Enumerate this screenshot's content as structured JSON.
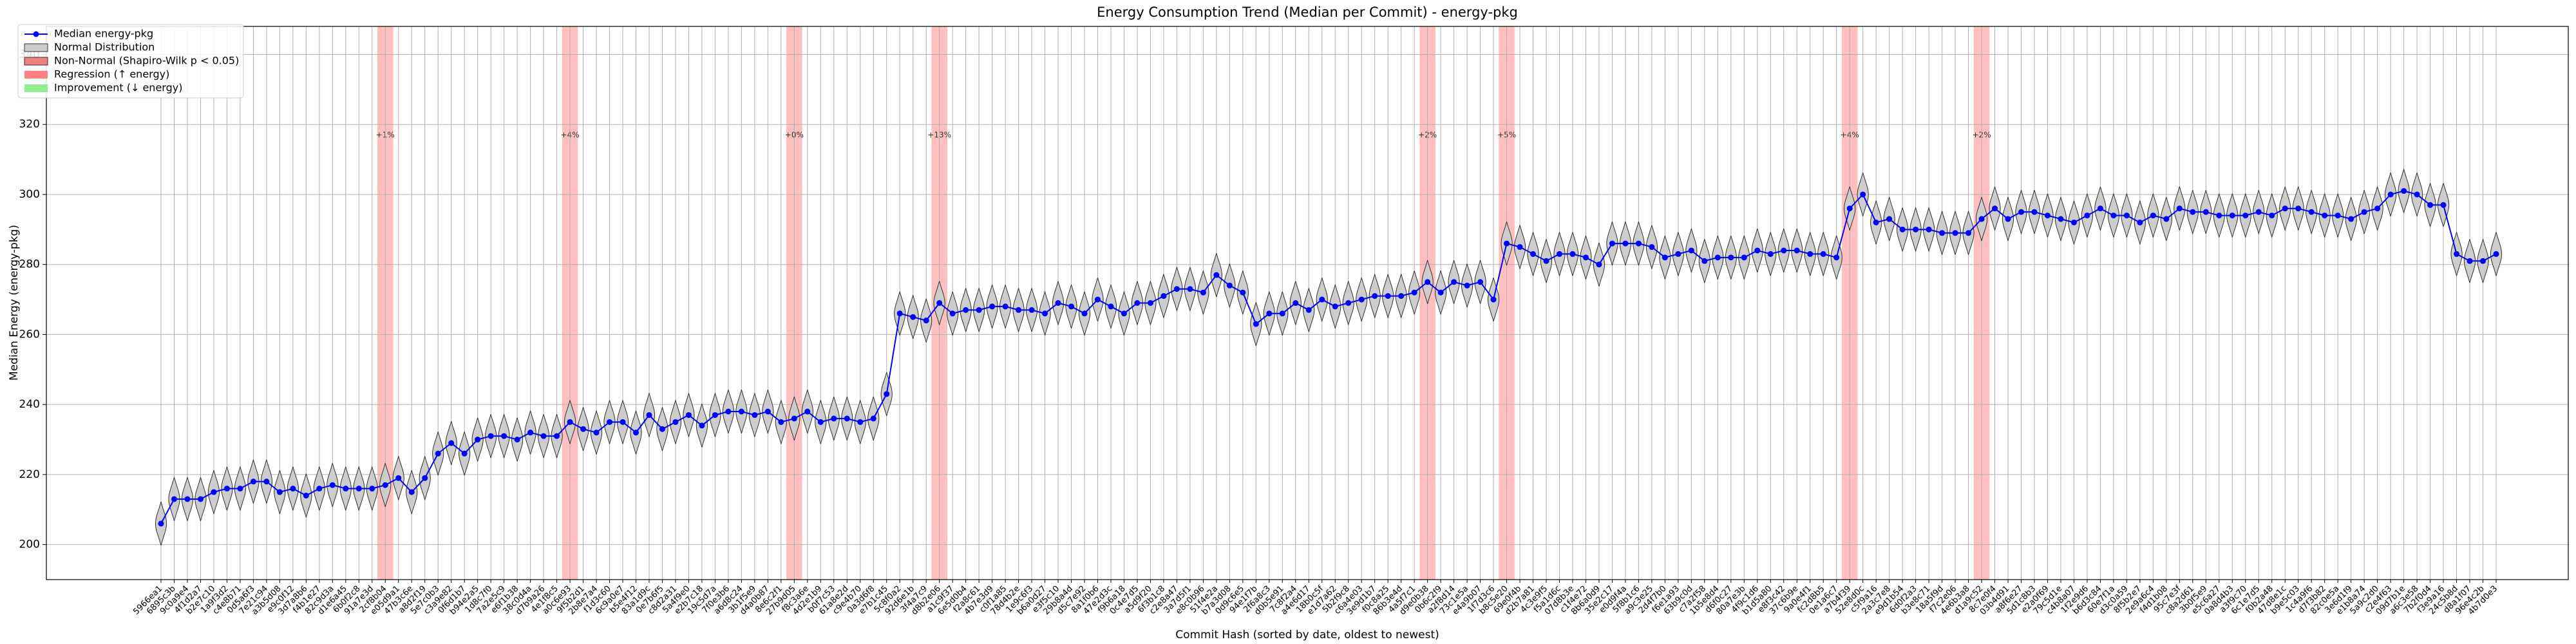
{
  "chart_data": {
    "type": "violin-line",
    "title": "Energy Consumption Trend (Median per Commit) - energy-pkg",
    "xlabel": "Commit Hash (sorted by date, oldest to newest)",
    "ylabel": "Median Energy (energy-pkg)",
    "ylim": [
      190,
      348
    ],
    "yticks": [
      200,
      220,
      240,
      260,
      280,
      300,
      320,
      340
    ],
    "grid": true,
    "legend": "upper left",
    "categories": [
      "5966ea1",
      "6895c3b",
      "9c0a9e4",
      "4f1d2a7",
      "b2e7c10",
      "1a9f3d2",
      "c4e8b71",
      "0d5a6f3",
      "7e21c94",
      "a3b5d08",
      "e9c0f12",
      "3d7a8b6",
      "f4b1e27",
      "82c9d3a",
      "d1e6a45",
      "6b0f2c8",
      "91a7e3d",
      "2cf8b04",
      "e05d9a1",
      "47b3c6e",
      "a8d2f19",
      "5e7c0b3",
      "c3a9e82",
      "0f6d1b7",
      "b94e2a5",
      "1d8c7f0",
      "7a2e5c9",
      "e6f1b38",
      "38c0d4a",
      "d7b9a26",
      "4e1f8c5",
      "a0c6e93",
      "9f5b2d1",
      "2b8e7a4",
      "f1d3c60",
      "6c9a0e7",
      "b5e4f12",
      "83a1d9c",
      "0e7b6f5",
      "c8d2a31",
      "5a4f9e0",
      "e2b7c18",
      "19c5d7a",
      "7f0e3b6",
      "a6d8c24",
      "3b1f5e9",
      "d4a0b87",
      "8e6c2f1",
      "27b9d05",
      "f8c3a6e",
      "4d2e1b9",
      "b0f7c53",
      "61a8e2d",
      "c9e4b70",
      "0a3d6f8",
      "e7b1c45",
      "5c8f0a2",
      "92d6e1b",
      "3f4a7c9",
      "d8b2e06",
      "a1c9f37",
      "6e5d0b4",
      "f2a8c61",
      "4b7e3d9",
      "c0f1a85",
      "78d4b2e",
      "1e9c6f3",
      "b6a0d27",
      "e3f5c10",
      "29b8a4d",
      "d5c7e92",
      "8a1f0b6",
      "47e2d3c",
      "f9b6a18",
      "0c4e7d5",
      "a5d9f20",
      "6f3b1c8",
      "c2e8a47",
      "3a7d5f1",
      "e8c0b96",
      "51f4e2a",
      "b7a3d08",
      "0d9c6e5",
      "94e1f7b",
      "2f6a8c3",
      "d0b5e91",
      "7c8f2a4",
      "a4e6d17",
      "18b0c5f",
      "e1d7a62",
      "5b2f9c8",
      "c6a4e03",
      "3e9d1b7",
      "f0c8a25",
      "86b3e4d",
      "4a5f7c1",
      "d9e0b38",
      "0b6c2f9",
      "a2f8d14",
      "73c1e5a",
      "e4a9b07",
      "1f7d3c6",
      "b8c5e20",
      "69e0f4b",
      "d2b7a81",
      "4c3e9f5",
      "f5a1d6c",
      "07d8b3e",
      "c1f4e72",
      "8b6a0d9",
      "35e2c17",
      "e0d9f4a",
      "5f8b1c6",
      "a9c3e25",
      "2d4f7b0",
      "f6e1a93",
      "63b9c0d",
      "c7a2f58",
      "1b5e8d4",
      "d6f0c27",
      "80a7e3b",
      "4f9c1d6",
      "b1d5a80",
      "e8f3c42",
      "37c6b9e",
      "9a0e4f1",
      "fc2d8b5",
      "0e1a6c7",
      "a7b4f39",
      "52e8d0c",
      "c5f9a16",
      "2a3c7e8",
      "e9d1b54",
      "6d0f2a3",
      "b3e8c71",
      "18a5f9d",
      "f7c2e06",
      "4e6b3a8",
      "d1a9c52",
      "8c7e0f4",
      "03b4d91",
      "a8f6e27",
      "5d1c8b3",
      "e2a0f69",
      "79c5d1e",
      "c4b8a07",
      "1f2e9d6",
      "b6d3c84",
      "60e7f1a",
      "d3c0a59",
      "8f5b2e7",
      "2e9a6c4",
      "f4d1b08",
      "95c7e3f",
      "c8a2d61",
      "3b0f5e9",
      "e5c6a27",
      "0a8d4b3",
      "a3f9c70",
      "6c1e7d5",
      "f0b2a48",
      "47d8e1c",
      "b9e5c03",
      "1c4a9f6",
      "d7f3b82",
      "82c0e5a",
      "3e6d1f9",
      "e1b8a74",
      "5a9c2d0",
      "c2e4f63",
      "09d7b1e",
      "a6c3e58",
      "7b2f0d4",
      "f3e9a16",
      "24c5b8d",
      "d8a1f07",
      "96e4c2b",
      "4b7d0e3"
    ],
    "series": [
      {
        "name": "Median energy-pkg",
        "color": "#0000ff",
        "values": [
          206,
          213,
          213,
          213,
          215,
          216,
          216,
          218,
          218,
          215,
          216,
          214,
          216,
          217,
          216,
          216,
          216,
          217,
          219,
          215,
          219,
          226,
          229,
          226,
          230,
          231,
          231,
          230,
          232,
          231,
          231,
          235,
          233,
          232,
          235,
          235,
          232,
          237,
          233,
          235,
          237,
          234,
          237,
          238,
          238,
          237,
          238,
          235,
          236,
          238,
          235,
          236,
          236,
          235,
          236,
          243,
          266,
          265,
          264,
          269,
          266,
          267,
          267,
          268,
          268,
          267,
          267,
          266,
          269,
          268,
          266,
          270,
          268,
          266,
          269,
          269,
          271,
          273,
          273,
          272,
          277,
          274,
          272,
          263,
          266,
          266,
          269,
          267,
          270,
          268,
          269,
          270,
          271,
          271,
          271,
          272,
          275,
          272,
          275,
          274,
          275,
          270,
          286,
          285,
          283,
          281,
          283,
          283,
          282,
          280,
          286,
          286,
          286,
          285,
          282,
          283,
          284,
          281,
          282,
          282,
          282,
          284,
          283,
          284,
          284,
          283,
          283,
          282,
          296,
          300,
          292,
          293,
          290,
          290,
          290,
          289,
          289,
          289,
          293,
          296,
          293,
          295,
          295,
          294,
          293,
          292,
          294,
          296,
          294,
          294,
          292,
          294,
          293,
          296,
          295,
          295,
          294,
          294,
          294,
          295,
          294,
          296,
          296,
          295,
          294,
          294,
          293,
          295,
          296,
          300,
          301,
          300,
          297,
          297,
          283,
          281,
          281,
          283
        ]
      }
    ],
    "violin_color": "#cccccc",
    "legend_items": [
      {
        "name": "Normal Distribution",
        "color": "#cccccc"
      },
      {
        "name": "Non-Normal (Shapiro-Wilk p < 0.05)",
        "color": "#f08080"
      },
      {
        "name": "Regression (↑ energy)",
        "color": "#ff8080"
      },
      {
        "name": "Improvement (↓ energy)",
        "color": "#90ee90"
      }
    ],
    "regressions": [
      {
        "commit": "2cf8b04",
        "label": "+1%"
      },
      {
        "commit": "a0c6e93",
        "label": "+4%"
      },
      {
        "commit": "27b9d05",
        "label": "+0%"
      },
      {
        "commit": "d8b2e06",
        "label": "+13%"
      },
      {
        "commit": "d9e0b38",
        "label": "+2%"
      },
      {
        "commit": "b8c5e20",
        "label": "+5%"
      },
      {
        "commit": "a7b4f39",
        "label": "+4%"
      },
      {
        "commit": "d1a9c52",
        "label": "+2%"
      }
    ]
  }
}
